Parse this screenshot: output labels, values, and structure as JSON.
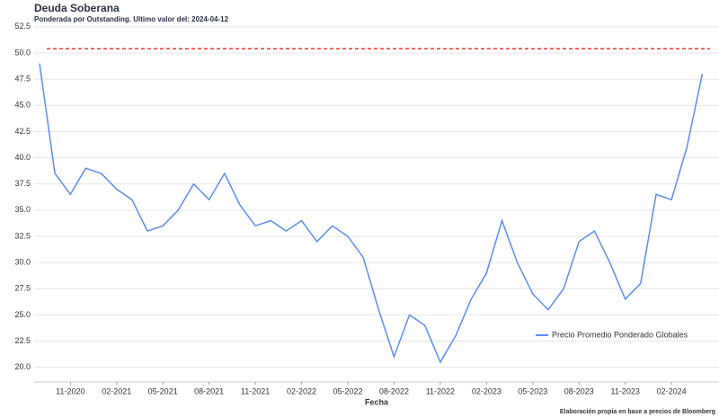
{
  "chart_data": {
    "type": "line",
    "title": "Deuda Soberana",
    "subtitle": "Ponderada por Outstanding. Ultimo valor del: 2024-04-12",
    "x_label": "Fecha",
    "footnote": "Elaboración propia en base a precios de Bloomberg",
    "categories": [
      null,
      null,
      "11-2020",
      null,
      null,
      "02-2021",
      null,
      null,
      "05-2021",
      null,
      null,
      "08-2021",
      null,
      null,
      "11-2021",
      null,
      null,
      "02-2022",
      null,
      null,
      "05-2022",
      null,
      null,
      "08-2022",
      null,
      null,
      "11-2022",
      null,
      null,
      "02-2023",
      null,
      null,
      "05-2023",
      null,
      null,
      "08-2023",
      null,
      null,
      "11-2023",
      null,
      null,
      "02-2024",
      null,
      null
    ],
    "series": [
      {
        "name": "Precio Promedio Ponderado Globales",
        "color": "#5b8def",
        "values": [
          49,
          38.5,
          36.5,
          39,
          38.5,
          37,
          36,
          33,
          33.5,
          35,
          37.5,
          36,
          38.5,
          35.5,
          33.5,
          34,
          33,
          34,
          32,
          33.5,
          32.5,
          30.5,
          25.5,
          21,
          25,
          24,
          20.5,
          23,
          26.5,
          29,
          34,
          30,
          27,
          25.5,
          27.5,
          32,
          33,
          30,
          26.5,
          28,
          36.5,
          36,
          41,
          48
        ]
      }
    ],
    "reference_line": {
      "value": 50.4,
      "color": "#e8382b"
    },
    "ylim": [
      18.6,
      53
    ],
    "yticks": [
      {
        "value": 20,
        "label": "20.0"
      },
      22.5,
      {
        "value": 25,
        "label": "25.0"
      },
      27.5,
      {
        "value": 30,
        "label": "30.0"
      },
      32.5,
      {
        "value": 35,
        "label": "35.0"
      },
      37.5,
      {
        "value": 40,
        "label": "40.0"
      },
      42.5,
      {
        "value": 45,
        "label": "45.0"
      },
      47.5,
      {
        "value": 50,
        "label": "50.0"
      },
      52.5
    ],
    "grid": true,
    "legend": "lower-right"
  }
}
